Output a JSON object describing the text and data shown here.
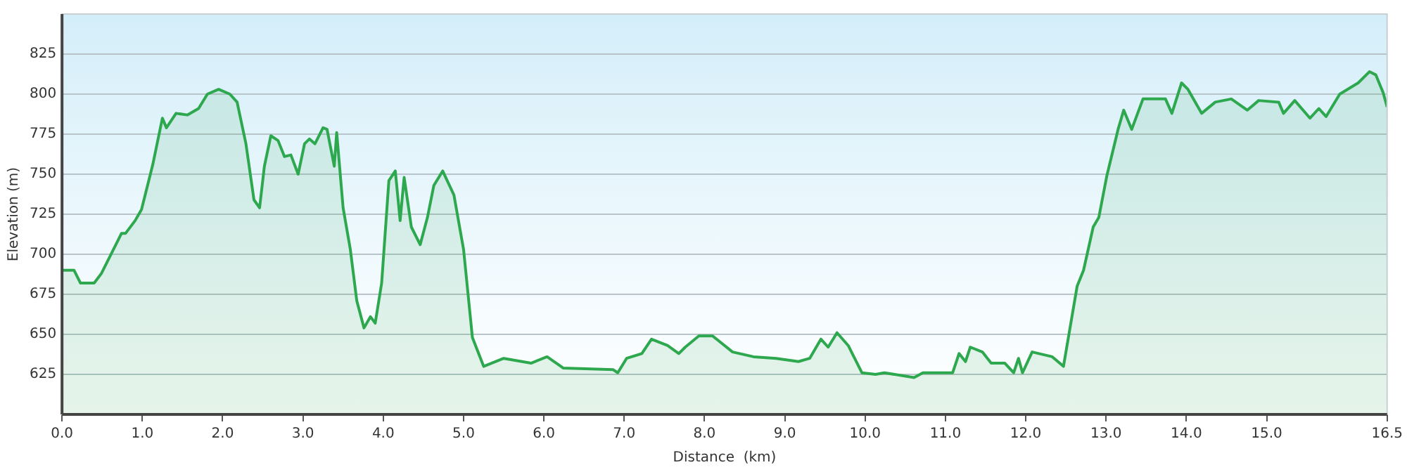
{
  "chart_data": {
    "type": "area",
    "xlabel": "Distance  (km)",
    "ylabel": "Elevation (m)",
    "xlim": [
      0,
      16.5
    ],
    "xticks": [
      {
        "value": 0,
        "label": "0.0"
      },
      {
        "value": 1,
        "label": "1.0"
      },
      {
        "value": 2,
        "label": "2.0"
      },
      {
        "value": 3,
        "label": "3.0"
      },
      {
        "value": 4,
        "label": "4.0"
      },
      {
        "value": 5,
        "label": "5.0"
      },
      {
        "value": 6,
        "label": "6.0"
      },
      {
        "value": 7,
        "label": "7.0"
      },
      {
        "value": 8,
        "label": "8.0"
      },
      {
        "value": 9,
        "label": "9.0"
      },
      {
        "value": 10,
        "label": "10.0"
      },
      {
        "value": 11,
        "label": "11.0"
      },
      {
        "value": 12,
        "label": "12.0"
      },
      {
        "value": 13,
        "label": "13.0"
      },
      {
        "value": 14,
        "label": "14.0"
      },
      {
        "value": 15,
        "label": "15.0"
      },
      {
        "value": 16.5,
        "label": "16.5"
      }
    ],
    "ylim": [
      600,
      850
    ],
    "yticks": [
      625,
      650,
      675,
      700,
      725,
      750,
      775,
      800,
      825
    ],
    "grid": "y",
    "legend": false,
    "marker": "none",
    "series": [
      {
        "color": "#2ea84f",
        "x": [
          0,
          0.15,
          0.23,
          0.4,
          0.49,
          0.74,
          0.79,
          0.91,
          0.99,
          1.13,
          1.25,
          1.3,
          1.42,
          1.56,
          1.7,
          1.81,
          1.95,
          2.09,
          2.18,
          2.29,
          2.39,
          2.46,
          2.52,
          2.6,
          2.69,
          2.77,
          2.85,
          2.94,
          3.02,
          3.08,
          3.15,
          3.25,
          3.3,
          3.39,
          3.42,
          3.5,
          3.59,
          3.67,
          3.76,
          3.84,
          3.9,
          3.98,
          4.07,
          4.15,
          4.21,
          4.26,
          4.35,
          4.46,
          4.55,
          4.63,
          4.74,
          4.88,
          5,
          5.11,
          5.25,
          5.5,
          5.84,
          6.04,
          6.24,
          6.86,
          6.92,
          7.03,
          7.22,
          7.34,
          7.54,
          7.68,
          7.76,
          7.93,
          8.1,
          8.35,
          8.61,
          8.89,
          9.17,
          9.31,
          9.45,
          9.54,
          9.65,
          9.79,
          9.96,
          10.13,
          10.24,
          10.61,
          10.72,
          10.86,
          11.09,
          11.17,
          11.25,
          11.31,
          11.46,
          11.57,
          11.74,
          11.85,
          11.91,
          11.96,
          12.08,
          12.33,
          12.47,
          12.64,
          12.72,
          12.84,
          12.91,
          13.01,
          13.15,
          13.22,
          13.32,
          13.46,
          13.74,
          13.82,
          13.94,
          14.02,
          14.19,
          14.36,
          14.56,
          14.76,
          14.9,
          15.15,
          15.21,
          15.35,
          15.54,
          15.65,
          15.74,
          15.91,
          16.14,
          16.28,
          16.36,
          16.45,
          16.5
        ],
        "values": [
          690,
          690,
          682,
          682,
          688,
          713,
          713,
          721,
          728,
          756,
          785,
          779,
          788,
          787,
          791,
          800,
          803,
          800,
          795,
          769,
          734,
          729,
          755,
          774,
          771,
          761,
          762,
          750,
          769,
          772,
          769,
          779,
          778,
          755,
          776,
          729,
          703,
          671,
          654,
          661,
          657,
          682,
          746,
          752,
          721,
          748,
          717,
          706,
          723,
          743,
          752,
          737,
          703,
          648,
          630,
          635,
          632,
          636,
          629,
          628,
          626,
          635,
          638,
          647,
          643,
          638,
          642,
          649,
          649,
          639,
          636,
          635,
          633,
          635,
          647,
          642,
          651,
          643,
          626,
          625,
          626,
          623,
          626,
          626,
          626,
          638,
          633,
          642,
          639,
          632,
          632,
          626,
          635,
          626,
          639,
          636,
          630,
          680,
          690,
          717,
          723,
          749,
          778,
          790,
          778,
          797,
          797,
          788,
          807,
          803,
          788,
          795,
          797,
          790,
          796,
          795,
          788,
          796,
          785,
          791,
          786,
          800,
          807,
          814,
          812,
          801,
          792
        ]
      }
    ]
  }
}
